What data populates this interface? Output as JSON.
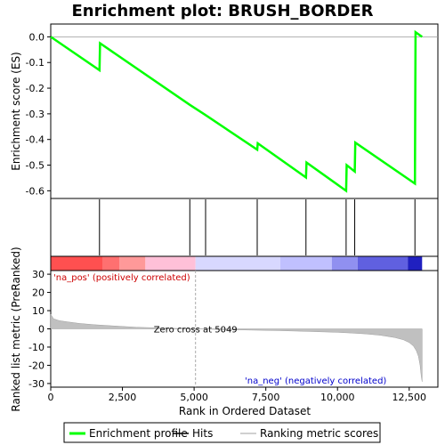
{
  "chart_data": {
    "type": "line",
    "title": "Enrichment plot: BRUSH_BORDER",
    "top_panel": {
      "ylabel": "Enrichment score (ES)",
      "ylim": [
        -0.63,
        0.05
      ],
      "yticks": [
        0.0,
        -0.1,
        -0.2,
        -0.3,
        -0.4,
        -0.5,
        -0.6
      ],
      "ytick_labels": [
        "0.0",
        "-0.1",
        "-0.2",
        "-0.3",
        "-0.4",
        "-0.5",
        "-0.6"
      ],
      "series": [
        {
          "name": "Enrichment profile",
          "color": "#00ff00",
          "x": [
            0,
            1700,
            1720,
            4850,
            5400,
            7200,
            7220,
            8900,
            8920,
            10300,
            10320,
            10600,
            10620,
            12700,
            12720,
            12950
          ],
          "y": [
            0.0,
            -0.13,
            -0.025,
            -0.265,
            -0.305,
            -0.44,
            -0.415,
            -0.548,
            -0.49,
            -0.6,
            -0.5,
            -0.525,
            -0.412,
            -0.572,
            0.018,
            0.0
          ]
        }
      ]
    },
    "hits": {
      "name": "Hits",
      "positions": [
        1700,
        4850,
        5400,
        7200,
        8900,
        10300,
        10600,
        12700
      ]
    },
    "bottom_panel": {
      "ylabel": "Ranked list metric (PreRanked)",
      "xlabel": "Rank in Ordered Dataset",
      "ylim": [
        -32,
        32
      ],
      "yticks": [
        30,
        20,
        10,
        0,
        -10,
        -20,
        -30
      ],
      "ytick_labels": [
        "30",
        "20",
        "10",
        "0",
        "-10",
        "-20",
        "-30"
      ],
      "xlim": [
        0,
        13500
      ],
      "xticks": [
        0,
        2500,
        5000,
        7500,
        10000,
        12500
      ],
      "xtick_labels": [
        "0",
        "2,500",
        "5,000",
        "7,500",
        "10,000",
        "12,500"
      ],
      "metric_series": {
        "name": "Ranking metric scores",
        "x": [
          0,
          100,
          300,
          600,
          1000,
          1500,
          2000,
          2500,
          3000,
          4000,
          5049,
          6000,
          7000,
          8000,
          9000,
          10000,
          10500,
          11000,
          11500,
          12000,
          12300,
          12500,
          12650,
          12750,
          12820,
          12880,
          12920,
          12950
        ],
        "y": [
          8,
          5.5,
          4.5,
          3.8,
          3.0,
          2.3,
          1.8,
          1.3,
          0.9,
          0.4,
          0,
          -0.4,
          -0.7,
          -1.0,
          -1.4,
          -1.9,
          -2.3,
          -2.8,
          -3.5,
          -4.8,
          -6.0,
          -7.5,
          -9.5,
          -12,
          -15,
          -20,
          -26,
          -29
        ]
      },
      "zero_cross_label": "Zero cross at 5049",
      "zero_cross_x": 5049,
      "pos_label": "'na_pos' (positively correlated)",
      "neg_label": "'na_neg' (negatively correlated)"
    },
    "color_bar": {
      "segments": [
        {
          "x0": 0,
          "x1": 1800,
          "color": "#ff5050"
        },
        {
          "x0": 1800,
          "x1": 2400,
          "color": "#ff7070"
        },
        {
          "x0": 2400,
          "x1": 3300,
          "color": "#ff9999"
        },
        {
          "x0": 3300,
          "x1": 5049,
          "color": "#ffc0d8"
        },
        {
          "x0": 5049,
          "x1": 8000,
          "color": "#d8d8ff"
        },
        {
          "x0": 8000,
          "x1": 9800,
          "color": "#c0c0ff"
        },
        {
          "x0": 9800,
          "x1": 10700,
          "color": "#9090f0"
        },
        {
          "x0": 10700,
          "x1": 12450,
          "color": "#6060e0"
        },
        {
          "x0": 12450,
          "x1": 12950,
          "color": "#2020c0"
        }
      ]
    },
    "legend": [
      {
        "label": "Enrichment profile",
        "color": "#00ff00"
      },
      {
        "label": "Hits",
        "color": "#000000"
      },
      {
        "label": "Ranking metric scores",
        "color": "#c0c0c0"
      }
    ]
  }
}
